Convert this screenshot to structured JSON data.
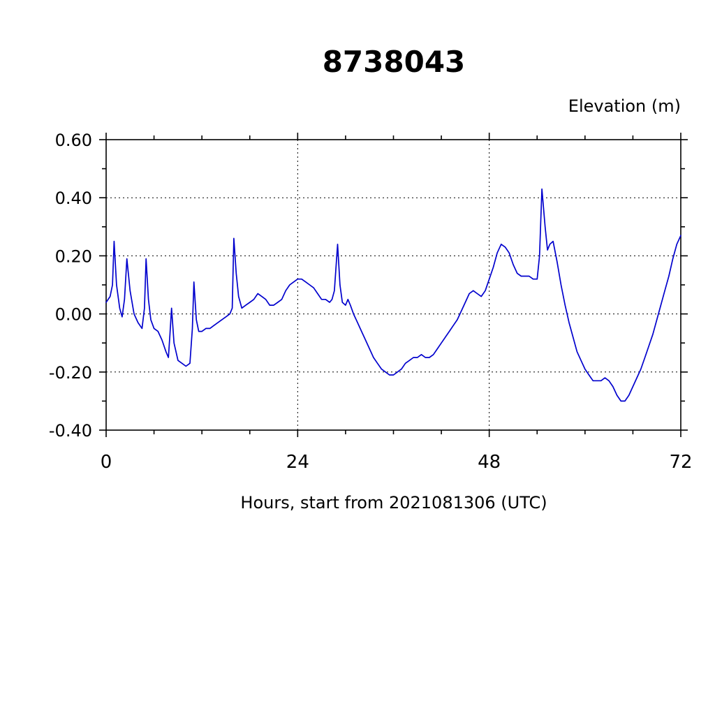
{
  "page": {
    "background": "#ffffff"
  },
  "chart": {
    "title": "8738043",
    "y_axis_title": "Elevation (m)",
    "x_axis_label": "Hours, start from 2021081306 (UTC)",
    "line_color": "#0000cd",
    "axis_color": "#000000",
    "grid_color": "#000000"
  },
  "chart_data": {
    "type": "line",
    "title": "8738043",
    "ylabel": "Elevation (m)",
    "xlabel": "Hours, start from 2021081306 (UTC)",
    "xlim": [
      0,
      72
    ],
    "ylim": [
      -0.4,
      0.6
    ],
    "x_major_ticks": [
      0,
      24,
      48,
      72
    ],
    "x_tick_labels": [
      "0",
      "24",
      "48",
      "72"
    ],
    "x_minor_ticks": [
      6,
      12,
      18,
      30,
      36,
      42,
      54,
      60,
      66
    ],
    "y_major_ticks": [
      -0.4,
      -0.2,
      0.0,
      0.2,
      0.4,
      0.6
    ],
    "y_tick_labels": [
      "-0.40",
      "-0.20",
      "0.00",
      "0.20",
      "0.40",
      "0.60"
    ],
    "y_minor_ticks": [
      -0.3,
      -0.1,
      0.1,
      0.3,
      0.5
    ],
    "grid": {
      "horizontal_at": [
        -0.4,
        -0.2,
        0.0,
        0.2,
        0.4,
        0.6
      ],
      "vertical_at": [
        24,
        48
      ],
      "style": "dotted"
    },
    "legend": "none",
    "series": [
      {
        "name": "elevation",
        "color": "#0000cd",
        "points": [
          [
            0,
            0.04
          ],
          [
            0.5,
            0.06
          ],
          [
            0.8,
            0.1
          ],
          [
            1.0,
            0.25
          ],
          [
            1.3,
            0.1
          ],
          [
            1.7,
            0.02
          ],
          [
            2.0,
            -0.01
          ],
          [
            2.3,
            0.05
          ],
          [
            2.6,
            0.19
          ],
          [
            3.0,
            0.08
          ],
          [
            3.5,
            0.0
          ],
          [
            4.0,
            -0.03
          ],
          [
            4.5,
            -0.05
          ],
          [
            4.8,
            0.02
          ],
          [
            5.0,
            0.19
          ],
          [
            5.3,
            0.05
          ],
          [
            5.6,
            -0.02
          ],
          [
            6.0,
            -0.05
          ],
          [
            6.5,
            -0.06
          ],
          [
            7.0,
            -0.09
          ],
          [
            7.5,
            -0.13
          ],
          [
            7.8,
            -0.15
          ],
          [
            8.0,
            -0.07
          ],
          [
            8.2,
            0.02
          ],
          [
            8.5,
            -0.1
          ],
          [
            9.0,
            -0.16
          ],
          [
            9.5,
            -0.17
          ],
          [
            10.0,
            -0.18
          ],
          [
            10.5,
            -0.17
          ],
          [
            10.8,
            -0.05
          ],
          [
            11.0,
            0.11
          ],
          [
            11.3,
            -0.02
          ],
          [
            11.6,
            -0.06
          ],
          [
            12.0,
            -0.06
          ],
          [
            12.5,
            -0.05
          ],
          [
            13.0,
            -0.05
          ],
          [
            13.5,
            -0.04
          ],
          [
            14.0,
            -0.03
          ],
          [
            14.5,
            -0.02
          ],
          [
            15.0,
            -0.01
          ],
          [
            15.5,
            0.0
          ],
          [
            15.8,
            0.02
          ],
          [
            16.0,
            0.26
          ],
          [
            16.3,
            0.14
          ],
          [
            16.6,
            0.06
          ],
          [
            17.0,
            0.02
          ],
          [
            17.5,
            0.03
          ],
          [
            18.0,
            0.04
          ],
          [
            18.5,
            0.05
          ],
          [
            19.0,
            0.07
          ],
          [
            19.5,
            0.06
          ],
          [
            20.0,
            0.05
          ],
          [
            20.5,
            0.03
          ],
          [
            21.0,
            0.03
          ],
          [
            21.5,
            0.04
          ],
          [
            22.0,
            0.05
          ],
          [
            22.5,
            0.08
          ],
          [
            23.0,
            0.1
          ],
          [
            23.5,
            0.11
          ],
          [
            24.0,
            0.12
          ],
          [
            24.5,
            0.12
          ],
          [
            25.0,
            0.11
          ],
          [
            25.5,
            0.1
          ],
          [
            26.0,
            0.09
          ],
          [
            26.5,
            0.07
          ],
          [
            27.0,
            0.05
          ],
          [
            27.5,
            0.05
          ],
          [
            28.0,
            0.04
          ],
          [
            28.3,
            0.05
          ],
          [
            28.6,
            0.08
          ],
          [
            29.0,
            0.24
          ],
          [
            29.3,
            0.1
          ],
          [
            29.6,
            0.04
          ],
          [
            30.0,
            0.03
          ],
          [
            30.3,
            0.05
          ],
          [
            30.6,
            0.03
          ],
          [
            31.0,
            0.0
          ],
          [
            31.5,
            -0.03
          ],
          [
            32.0,
            -0.06
          ],
          [
            32.5,
            -0.09
          ],
          [
            33.0,
            -0.12
          ],
          [
            33.5,
            -0.15
          ],
          [
            34.0,
            -0.17
          ],
          [
            34.5,
            -0.19
          ],
          [
            35.0,
            -0.2
          ],
          [
            35.5,
            -0.21
          ],
          [
            36.0,
            -0.21
          ],
          [
            36.5,
            -0.2
          ],
          [
            37.0,
            -0.19
          ],
          [
            37.5,
            -0.17
          ],
          [
            38.0,
            -0.16
          ],
          [
            38.5,
            -0.15
          ],
          [
            39.0,
            -0.15
          ],
          [
            39.5,
            -0.14
          ],
          [
            40.0,
            -0.15
          ],
          [
            40.5,
            -0.15
          ],
          [
            41.0,
            -0.14
          ],
          [
            41.5,
            -0.12
          ],
          [
            42.0,
            -0.1
          ],
          [
            42.5,
            -0.08
          ],
          [
            43.0,
            -0.06
          ],
          [
            43.5,
            -0.04
          ],
          [
            44.0,
            -0.02
          ],
          [
            44.5,
            0.01
          ],
          [
            45.0,
            0.04
          ],
          [
            45.5,
            0.07
          ],
          [
            46.0,
            0.08
          ],
          [
            46.5,
            0.07
          ],
          [
            47.0,
            0.06
          ],
          [
            47.5,
            0.08
          ],
          [
            48.0,
            0.12
          ],
          [
            48.5,
            0.16
          ],
          [
            49.0,
            0.21
          ],
          [
            49.5,
            0.24
          ],
          [
            50.0,
            0.23
          ],
          [
            50.5,
            0.21
          ],
          [
            51.0,
            0.17
          ],
          [
            51.5,
            0.14
          ],
          [
            52.0,
            0.13
          ],
          [
            52.5,
            0.13
          ],
          [
            53.0,
            0.13
          ],
          [
            53.5,
            0.12
          ],
          [
            54.0,
            0.12
          ],
          [
            54.3,
            0.2
          ],
          [
            54.6,
            0.43
          ],
          [
            55.0,
            0.3
          ],
          [
            55.3,
            0.22
          ],
          [
            55.6,
            0.24
          ],
          [
            56.0,
            0.25
          ],
          [
            56.5,
            0.18
          ],
          [
            57.0,
            0.1
          ],
          [
            57.5,
            0.03
          ],
          [
            58.0,
            -0.03
          ],
          [
            58.5,
            -0.08
          ],
          [
            59.0,
            -0.13
          ],
          [
            59.5,
            -0.16
          ],
          [
            60.0,
            -0.19
          ],
          [
            60.5,
            -0.21
          ],
          [
            61.0,
            -0.23
          ],
          [
            61.5,
            -0.23
          ],
          [
            62.0,
            -0.23
          ],
          [
            62.5,
            -0.22
          ],
          [
            63.0,
            -0.23
          ],
          [
            63.5,
            -0.25
          ],
          [
            64.0,
            -0.28
          ],
          [
            64.5,
            -0.3
          ],
          [
            65.0,
            -0.3
          ],
          [
            65.5,
            -0.28
          ],
          [
            66.0,
            -0.25
          ],
          [
            66.5,
            -0.22
          ],
          [
            67.0,
            -0.19
          ],
          [
            67.5,
            -0.15
          ],
          [
            68.0,
            -0.11
          ],
          [
            68.5,
            -0.07
          ],
          [
            69.0,
            -0.02
          ],
          [
            69.5,
            0.03
          ],
          [
            70.0,
            0.08
          ],
          [
            70.5,
            0.13
          ],
          [
            71.0,
            0.19
          ],
          [
            71.5,
            0.24
          ],
          [
            72.0,
            0.27
          ]
        ]
      }
    ]
  }
}
